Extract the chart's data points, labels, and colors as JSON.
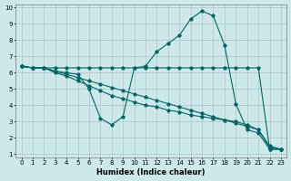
{
  "xlabel": "Humidex (Indice chaleur)",
  "xlim": [
    -0.5,
    23.5
  ],
  "ylim": [
    0.8,
    10.2
  ],
  "background_color": "#cde8e8",
  "grid_color": "#aab8cc",
  "line_color": "#006666",
  "line1_y": [
    6.4,
    6.3,
    6.3,
    6.3,
    6.3,
    6.3,
    6.3,
    6.3,
    6.3,
    6.3,
    6.3,
    6.3,
    6.3,
    6.3,
    6.3,
    6.3,
    6.3,
    6.3,
    6.3,
    6.3,
    6.3,
    6.3,
    1.3,
    1.3
  ],
  "line2_y": [
    6.4,
    6.3,
    6.3,
    6.1,
    6.0,
    5.9,
    5.0,
    3.2,
    2.8,
    3.3,
    6.3,
    6.4,
    7.3,
    7.8,
    8.3,
    9.3,
    9.8,
    9.5,
    7.7,
    4.1,
    2.5,
    2.3,
    1.3,
    1.3
  ],
  "line3_y": [
    6.4,
    6.3,
    6.3,
    6.1,
    5.9,
    5.7,
    5.5,
    5.3,
    5.1,
    4.9,
    4.7,
    4.5,
    4.3,
    4.1,
    3.9,
    3.7,
    3.5,
    3.3,
    3.1,
    2.9,
    2.7,
    2.5,
    1.5,
    1.3
  ],
  "line4_y": [
    6.4,
    6.3,
    6.3,
    6.0,
    5.8,
    5.5,
    5.2,
    4.9,
    4.6,
    4.4,
    4.2,
    4.0,
    3.9,
    3.7,
    3.6,
    3.4,
    3.3,
    3.2,
    3.1,
    3.0,
    2.8,
    2.5,
    1.4,
    1.3
  ]
}
